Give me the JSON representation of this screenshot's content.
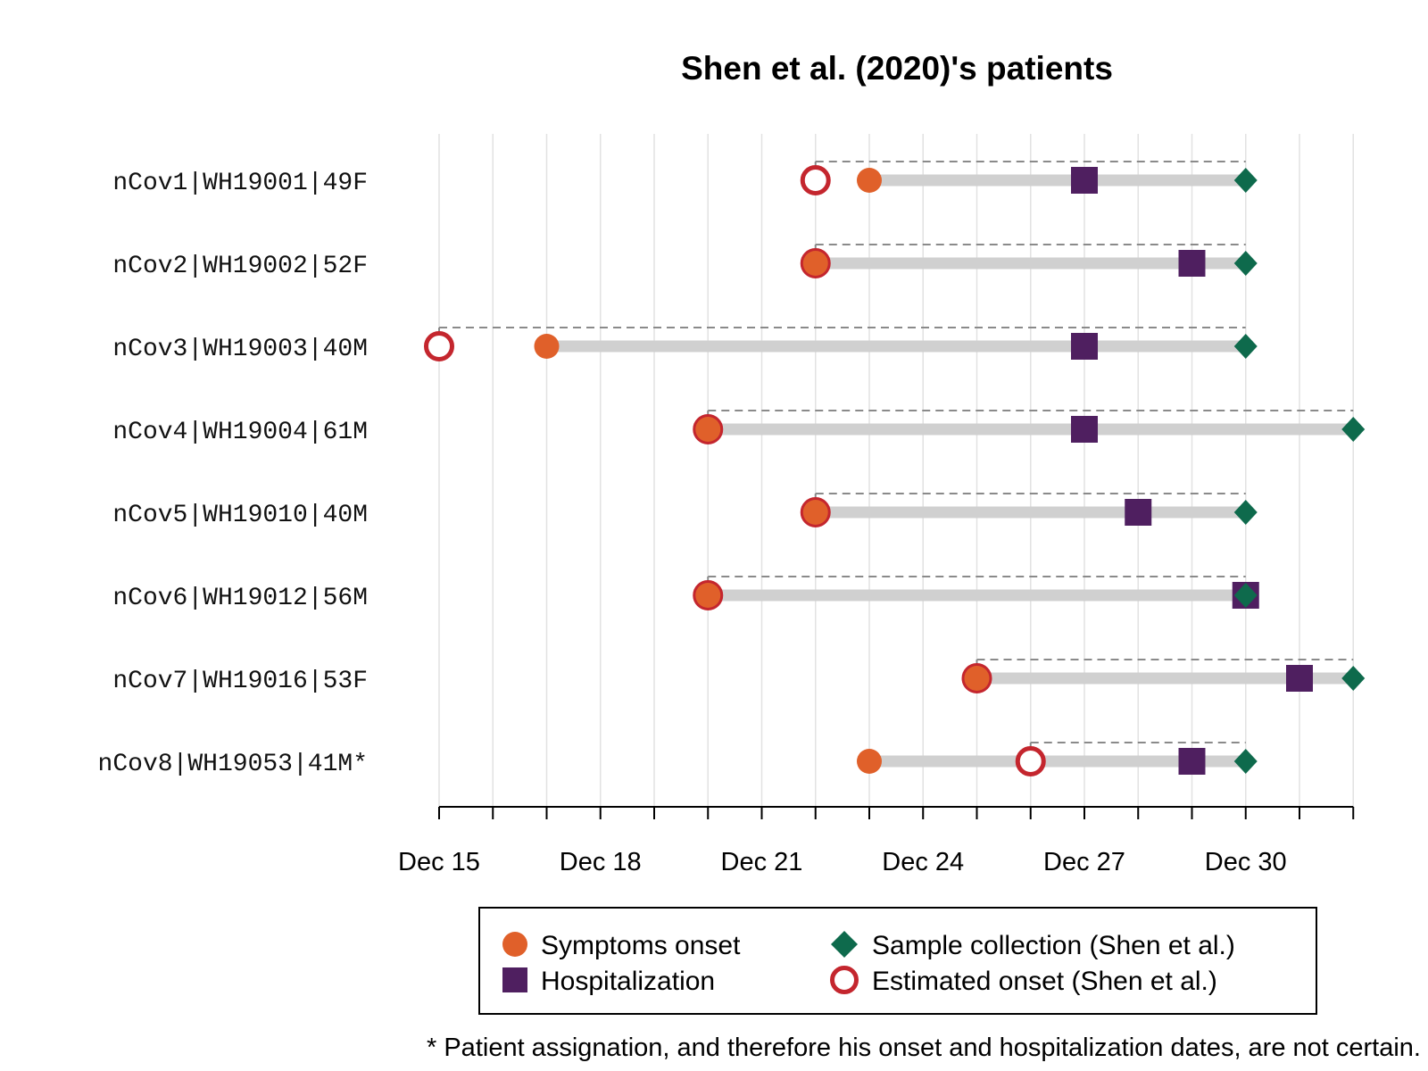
{
  "chart_data": {
    "type": "timeline",
    "title": "Shen et al. (2020)'s patients",
    "x_axis": {
      "range": [
        "Dec 15",
        "Jan 1"
      ],
      "minor_ticks": [
        "Dec 15",
        "Dec 16",
        "Dec 17",
        "Dec 18",
        "Dec 19",
        "Dec 20",
        "Dec 21",
        "Dec 22",
        "Dec 23",
        "Dec 24",
        "Dec 25",
        "Dec 26",
        "Dec 27",
        "Dec 28",
        "Dec 29",
        "Dec 30",
        "Dec 31",
        "Jan 1"
      ],
      "tick_labels": [
        {
          "date": "Dec 15",
          "label": "Dec 15"
        },
        {
          "date": "Dec 18",
          "label": "Dec 18"
        },
        {
          "date": "Dec 21",
          "label": "Dec 21"
        },
        {
          "date": "Dec 24",
          "label": "Dec 24"
        },
        {
          "date": "Dec 27",
          "label": "Dec 27"
        },
        {
          "date": "Dec 30",
          "label": "Dec 30"
        }
      ],
      "grid": true
    },
    "patients": [
      {
        "label": "nCov1|WH19001|49F",
        "symptoms_onset": "Dec 23",
        "hospitalization": "Dec 27",
        "sample_collection": "Dec 30",
        "estimated_onset": "Dec 22"
      },
      {
        "label": "nCov2|WH19002|52F",
        "symptoms_onset": "Dec 22",
        "hospitalization": "Dec 29",
        "sample_collection": "Dec 30",
        "estimated_onset": "Dec 22"
      },
      {
        "label": "nCov3|WH19003|40M",
        "symptoms_onset": "Dec 17",
        "hospitalization": "Dec 27",
        "sample_collection": "Dec 30",
        "estimated_onset": "Dec 15"
      },
      {
        "label": "nCov4|WH19004|61M",
        "symptoms_onset": "Dec 20",
        "hospitalization": "Dec 27",
        "sample_collection": "Jan 1",
        "estimated_onset": "Dec 20"
      },
      {
        "label": "nCov5|WH19010|40M",
        "symptoms_onset": "Dec 22",
        "hospitalization": "Dec 28",
        "sample_collection": "Dec 30",
        "estimated_onset": "Dec 22"
      },
      {
        "label": "nCov6|WH19012|56M",
        "symptoms_onset": "Dec 20",
        "hospitalization": "Dec 30",
        "sample_collection": "Dec 30",
        "estimated_onset": "Dec 20"
      },
      {
        "label": "nCov7|WH19016|53F",
        "symptoms_onset": "Dec 25",
        "hospitalization": "Dec 31",
        "sample_collection": "Jan 1",
        "estimated_onset": "Dec 25"
      },
      {
        "label": "nCov8|WH19053|41M*",
        "symptoms_onset": "Dec 23",
        "hospitalization": "Dec 29",
        "sample_collection": "Dec 30",
        "estimated_onset": "Dec 26"
      }
    ],
    "legend": {
      "placement": "bottom",
      "entries": [
        {
          "key": "symptoms_onset",
          "label": "Symptoms onset",
          "marker": "filled-circle",
          "color": "#e0602a"
        },
        {
          "key": "sample_collection",
          "label": "Sample collection (Shen et al.)",
          "marker": "diamond",
          "color": "#0e6a4c"
        },
        {
          "key": "hospitalization",
          "label": "Hospitalization",
          "marker": "square",
          "color": "#4f1f60"
        },
        {
          "key": "estimated_onset",
          "label": "Estimated onset (Shen et al.)",
          "marker": "open-circle",
          "color": "#c4262e"
        }
      ]
    },
    "footnote": "* Patient assignation, and therefore his onset and hospitalization dates, are not certain."
  },
  "colors": {
    "bar": "#d0d0d0",
    "dashed": "#8a8a8a",
    "grid": "#e2e2e2"
  }
}
